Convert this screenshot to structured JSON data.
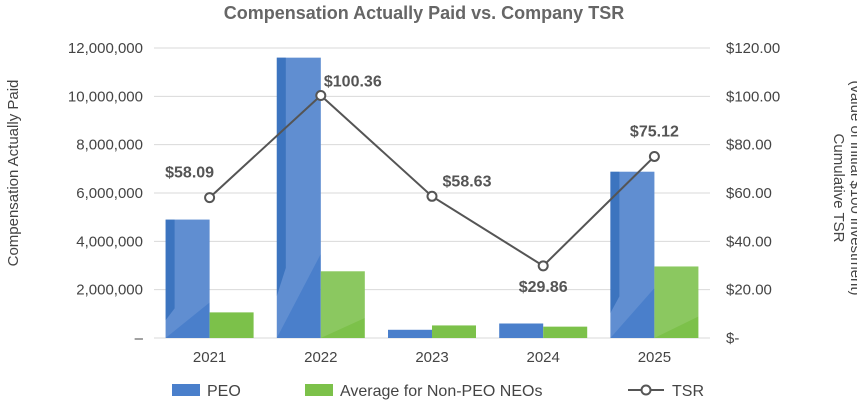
{
  "chart_data": {
    "type": "bar",
    "title": "Compensation Actually Paid vs. Company TSR",
    "categories": [
      "2021",
      "2022",
      "2023",
      "2024",
      "2025"
    ],
    "series": [
      {
        "name": "PEO",
        "type": "bar",
        "axis": "left",
        "color": "#4a7fcb",
        "values": [
          4900000,
          11600000,
          340000,
          600000,
          6880000
        ]
      },
      {
        "name": "Average for Non-PEO NEOs",
        "type": "bar",
        "axis": "left",
        "color": "#7cc14a",
        "values": [
          1060000,
          2760000,
          520000,
          470000,
          2960000
        ]
      },
      {
        "name": "TSR",
        "type": "line",
        "axis": "right",
        "color": "#555555",
        "values": [
          58.09,
          100.36,
          58.63,
          29.86,
          75.12
        ],
        "labels": [
          "$58.09",
          "$100.36",
          "$58.63",
          "$29.86",
          "$75.12"
        ]
      }
    ],
    "ylabel": "Compensation Actually Paid",
    "y2label_line1": "Cumulative TSR",
    "y2label_line2": "(value of initial $100 investment)",
    "ylim": [
      0,
      12000000
    ],
    "y2lim": [
      0,
      120
    ],
    "yticks": [
      "–",
      "2,000,000",
      "4,000,000",
      "6,000,000",
      "8,000,000",
      "10,000,000",
      "12,000,000"
    ],
    "y2ticks": [
      "$-",
      "$20.00",
      "$40.00",
      "$60.00",
      "$80.00",
      "$100.00",
      "$120.00"
    ],
    "legend": [
      "PEO",
      "Average for Non-PEO NEOs",
      "TSR"
    ],
    "legend_position": "bottom",
    "grid": true
  }
}
